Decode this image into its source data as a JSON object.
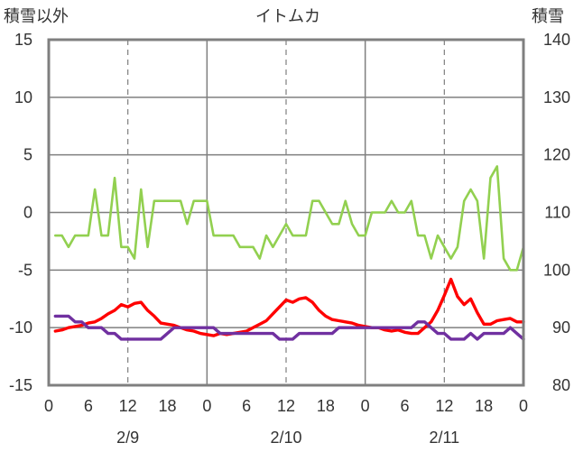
{
  "chart_data": {
    "type": "line",
    "title": "イトムカ",
    "ylabel_left": "積雪以外",
    "ylabel_right": "積雪",
    "x_unit": "hour",
    "x_range": [
      0,
      72
    ],
    "y_left": {
      "range": [
        -15,
        15
      ],
      "ticks": [
        "15",
        "10",
        "5",
        "0",
        "-5",
        "-10",
        "-15"
      ]
    },
    "y_right": {
      "range": [
        80,
        140
      ],
      "ticks": [
        "140",
        "130",
        "120",
        "110",
        "100",
        "90",
        "80"
      ]
    },
    "x_ticks": [
      "0",
      "6",
      "12",
      "18",
      "0",
      "6",
      "12",
      "18",
      "0",
      "6",
      "12",
      "18",
      "0"
    ],
    "date_labels": [
      "2/9",
      "2/10",
      "2/11"
    ],
    "grid": true,
    "series": [
      {
        "color": "#92d050",
        "axis": "left",
        "x": [
          1,
          2,
          3,
          4,
          5,
          6,
          7,
          8,
          9,
          10,
          11,
          12,
          13,
          14,
          15,
          16,
          17,
          18,
          19,
          20,
          21,
          22,
          23,
          24,
          25,
          26,
          27,
          28,
          29,
          30,
          31,
          32,
          33,
          34,
          35,
          36,
          37,
          38,
          39,
          40,
          41,
          42,
          43,
          44,
          45,
          46,
          47,
          48,
          49,
          50,
          51,
          52,
          53,
          54,
          55,
          56,
          57,
          58,
          59,
          60,
          61,
          62,
          63,
          64,
          65,
          66,
          67,
          68,
          69,
          70,
          71,
          72
        ],
        "values": [
          -2,
          -2,
          -3,
          -2,
          -2,
          -2,
          2,
          -2,
          -2,
          3,
          -3,
          -3,
          -4,
          2,
          -3,
          1,
          1,
          1,
          1,
          1,
          -1,
          1,
          1,
          1,
          -2,
          -2,
          -2,
          -2,
          -3,
          -3,
          -3,
          -4,
          -2,
          -3,
          -2,
          -1,
          -2,
          -2,
          -2,
          1,
          1,
          0,
          -1,
          -1,
          1,
          -1,
          -2,
          -2,
          0,
          0,
          0,
          1,
          0,
          0,
          1,
          -2,
          -2,
          -4,
          -2,
          -3,
          -4,
          -3,
          1,
          2,
          1,
          -4,
          3,
          4,
          -4,
          -5,
          -5,
          -3
        ]
      },
      {
        "color": "#ff0000",
        "axis": "left",
        "x": [
          1,
          2,
          3,
          4,
          5,
          6,
          7,
          8,
          9,
          10,
          11,
          12,
          13,
          14,
          15,
          16,
          17,
          18,
          19,
          20,
          21,
          22,
          23,
          24,
          25,
          26,
          27,
          28,
          29,
          30,
          31,
          32,
          33,
          34,
          35,
          36,
          37,
          38,
          39,
          40,
          41,
          42,
          43,
          44,
          45,
          46,
          47,
          48,
          49,
          50,
          51,
          52,
          53,
          54,
          55,
          56,
          57,
          58,
          59,
          60,
          61,
          62,
          63,
          64,
          65,
          66,
          67,
          68,
          69,
          70,
          71,
          72
        ],
        "values": [
          -10.3,
          -10.2,
          -10,
          -9.9,
          -9.8,
          -9.6,
          -9.5,
          -9.2,
          -8.8,
          -8.5,
          -8,
          -8.2,
          -7.9,
          -7.8,
          -8.5,
          -9,
          -9.6,
          -9.7,
          -9.8,
          -10,
          -10.2,
          -10.3,
          -10.5,
          -10.6,
          -10.7,
          -10.5,
          -10.6,
          -10.5,
          -10.4,
          -10.3,
          -10,
          -9.7,
          -9.4,
          -8.8,
          -8.2,
          -7.6,
          -7.8,
          -7.5,
          -7.4,
          -7.8,
          -8.5,
          -9,
          -9.3,
          -9.4,
          -9.5,
          -9.6,
          -9.8,
          -9.9,
          -10,
          -10,
          -10.2,
          -10.3,
          -10.2,
          -10.4,
          -10.5,
          -10.5,
          -10,
          -9.5,
          -8.5,
          -7.2,
          -5.8,
          -7.3,
          -8,
          -7.5,
          -8.7,
          -9.7,
          -9.7,
          -9.4,
          -9.3,
          -9.2,
          -9.5,
          -9.5
        ]
      },
      {
        "color": "#7030a0",
        "axis": "right",
        "x": [
          1,
          2,
          3,
          4,
          5,
          6,
          7,
          8,
          9,
          10,
          11,
          12,
          13,
          14,
          15,
          16,
          17,
          18,
          19,
          20,
          21,
          22,
          23,
          24,
          25,
          26,
          27,
          28,
          29,
          30,
          31,
          32,
          33,
          34,
          35,
          36,
          37,
          38,
          39,
          40,
          41,
          42,
          43,
          44,
          45,
          46,
          47,
          48,
          49,
          50,
          51,
          52,
          53,
          54,
          55,
          56,
          57,
          58,
          59,
          60,
          61,
          62,
          63,
          64,
          65,
          66,
          67,
          68,
          69,
          70,
          71,
          72
        ],
        "values": [
          92,
          92,
          92,
          91,
          91,
          90,
          90,
          90,
          89,
          89,
          88,
          88,
          88,
          88,
          88,
          88,
          88,
          89,
          90,
          90,
          90,
          90,
          90,
          90,
          90,
          89,
          89,
          89,
          89,
          89,
          89,
          89,
          89,
          89,
          88,
          88,
          88,
          89,
          89,
          89,
          89,
          89,
          89,
          90,
          90,
          90,
          90,
          90,
          90,
          90,
          90,
          90,
          90,
          90,
          90,
          91,
          91,
          90,
          89,
          89,
          88,
          88,
          88,
          89,
          88,
          89,
          89,
          89,
          89,
          90,
          89,
          88
        ]
      }
    ]
  }
}
